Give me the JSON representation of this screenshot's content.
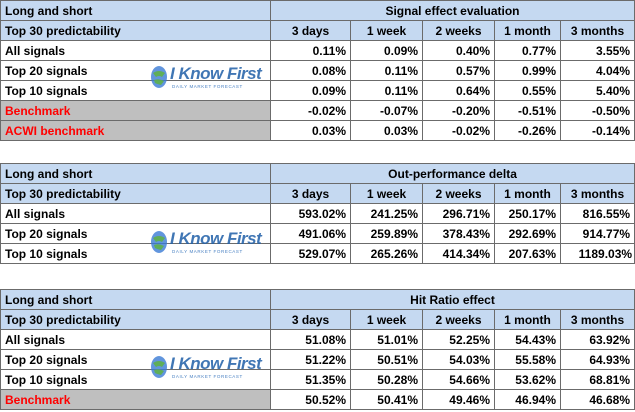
{
  "logo": {
    "brand": "I Know First",
    "tagline": "DAILY MARKET FORECAST"
  },
  "tables": [
    {
      "corner_title": "Long and short",
      "section_title": "Signal effect evaluation",
      "subheader_label": "Top 30 predictability",
      "columns": [
        "3 days",
        "1 week",
        "2 weeks",
        "1 month",
        "3 months"
      ],
      "rows": [
        {
          "label": "All signals",
          "values": [
            "0.11%",
            "0.09%",
            "0.40%",
            "0.77%",
            "3.55%"
          ]
        },
        {
          "label": "Top 20 signals",
          "values": [
            "0.08%",
            "0.11%",
            "0.57%",
            "0.99%",
            "4.04%"
          ]
        },
        {
          "label": "Top 10 signals",
          "values": [
            "0.09%",
            "0.11%",
            "0.64%",
            "0.55%",
            "5.40%"
          ]
        },
        {
          "label": "Benchmark",
          "values": [
            "-0.02%",
            "-0.07%",
            "-0.20%",
            "-0.51%",
            "-0.50%"
          ]
        },
        {
          "label": "ACWI benchmark",
          "values": [
            "0.03%",
            "0.03%",
            "-0.02%",
            "-0.26%",
            "-0.14%"
          ]
        }
      ]
    },
    {
      "corner_title": "Long and short",
      "section_title": "Out-performance delta",
      "subheader_label": "Top 30 predictability",
      "columns": [
        "3 days",
        "1 week",
        "2 weeks",
        "1 month",
        "3 months"
      ],
      "rows": [
        {
          "label": "All signals",
          "values": [
            "593.02%",
            "241.25%",
            "296.71%",
            "250.17%",
            "816.55%"
          ]
        },
        {
          "label": "Top 20 signals",
          "values": [
            "491.06%",
            "259.89%",
            "378.43%",
            "292.69%",
            "914.77%"
          ]
        },
        {
          "label": "Top 10 signals",
          "values": [
            "529.07%",
            "265.26%",
            "414.34%",
            "207.63%",
            "1189.03%"
          ]
        }
      ]
    },
    {
      "corner_title": "Long and short",
      "section_title": "Hit Ratio effect",
      "subheader_label": "Top 30 predictability",
      "columns": [
        "3 days",
        "1 week",
        "2 weeks",
        "1 month",
        "3 months"
      ],
      "rows": [
        {
          "label": "All signals",
          "values": [
            "51.08%",
            "51.01%",
            "52.25%",
            "54.43%",
            "63.92%"
          ]
        },
        {
          "label": "Top 20 signals",
          "values": [
            "51.22%",
            "50.51%",
            "54.03%",
            "55.58%",
            "64.93%"
          ]
        },
        {
          "label": "Top 10 signals",
          "values": [
            "51.35%",
            "50.28%",
            "54.66%",
            "53.62%",
            "68.81%"
          ]
        },
        {
          "label": "Benchmark",
          "values": [
            "50.52%",
            "50.41%",
            "49.46%",
            "46.94%",
            "46.68%"
          ]
        }
      ]
    }
  ],
  "colors": {
    "header_fill": "#c5d9f1",
    "benchmark_text": "#ff0000",
    "benchmark_fill": "#bfbfbf",
    "logo_blue": "#1f5fa8"
  }
}
